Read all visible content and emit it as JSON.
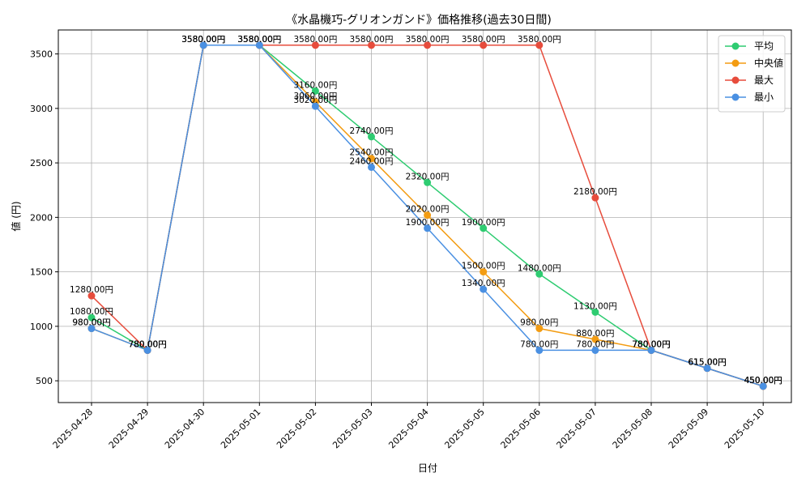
{
  "chart_data": {
    "type": "line",
    "title": "《水晶機巧-グリオンガンド》価格推移(過去30日間)",
    "xlabel": "日付",
    "ylabel": "値 (円)",
    "grid": true,
    "legend_position": "top-right",
    "ylim": [
      300,
      3720
    ],
    "yticks": [
      500,
      1000,
      1500,
      2000,
      2500,
      3000,
      3500
    ],
    "categories": [
      "2025-04-28",
      "2025-04-29",
      "2025-04-30",
      "2025-05-01",
      "2025-05-02",
      "2025-05-03",
      "2025-05-04",
      "2025-05-05",
      "2025-05-06",
      "2025-05-07",
      "2025-05-08",
      "2025-05-09",
      "2025-05-10"
    ],
    "label_suffix": "円",
    "series": [
      {
        "name": "平均",
        "color": "#2ecc71",
        "values": [
          1080,
          780,
          3580,
          3580,
          3160,
          2740,
          2320,
          1900,
          1480,
          1130,
          780,
          615,
          450
        ]
      },
      {
        "name": "中央値",
        "color": "#f39c12",
        "values": [
          980,
          780,
          3580,
          3580,
          3060,
          2540,
          2020,
          1500,
          980,
          880,
          780,
          615,
          450
        ]
      },
      {
        "name": "最大",
        "color": "#e74c3c",
        "values": [
          1280,
          780,
          3580,
          3580,
          3580,
          3580,
          3580,
          3580,
          3580,
          2180,
          780,
          615,
          450
        ]
      },
      {
        "name": "最小",
        "color": "#4a90e2",
        "values": [
          980,
          780,
          3580,
          3580,
          3020,
          2460,
          1900,
          1340,
          780,
          780,
          780,
          615,
          450
        ]
      }
    ]
  }
}
